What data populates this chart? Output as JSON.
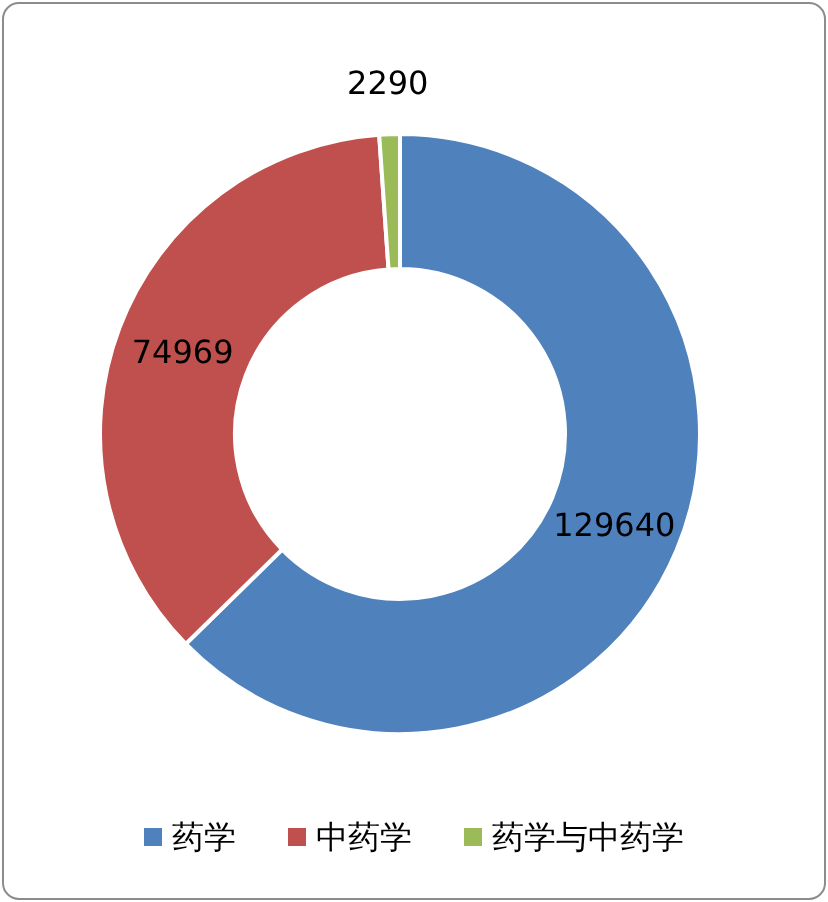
{
  "chart_data": {
    "type": "donut",
    "categories": [
      "药学",
      "中药学",
      "药学与中药学"
    ],
    "values": [
      129640,
      74969,
      2290
    ],
    "colors": [
      "#4f81bd",
      "#c0504d",
      "#9bbb59"
    ],
    "data_labels": true,
    "legend": "bottom"
  }
}
